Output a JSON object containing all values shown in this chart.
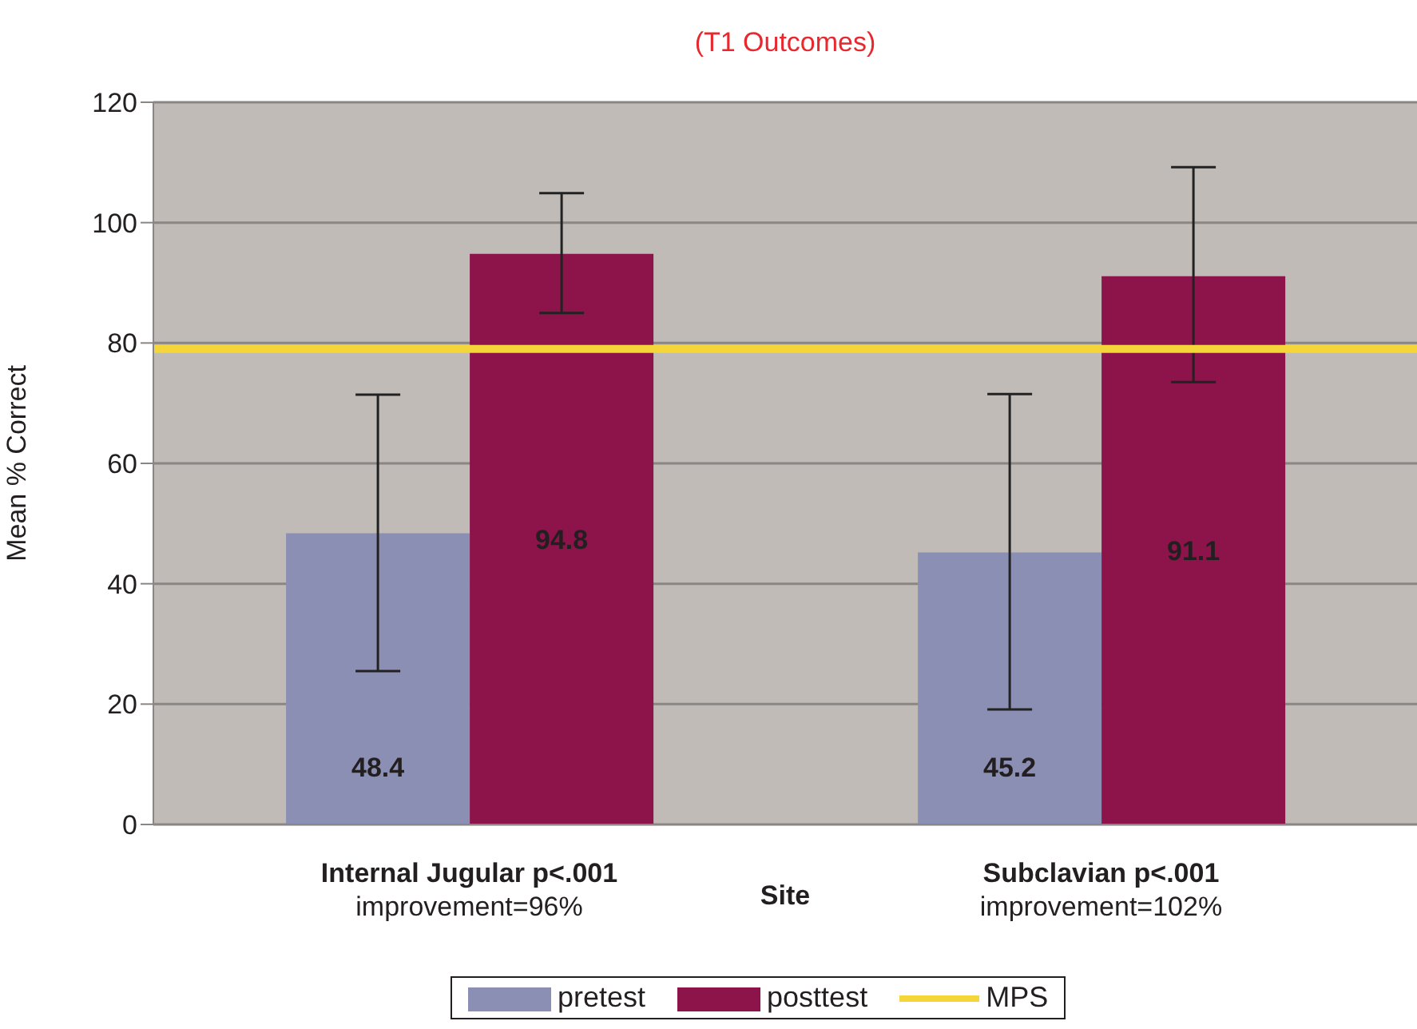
{
  "chart_data": {
    "type": "bar",
    "title": "(T1 Outcomes)",
    "xlabel": "Site",
    "ylabel": "Mean % Correct",
    "categories": [
      "Internal Jugular p<.001\nimprovement=96%",
      "Subclavian p<.001\nimprovement=102%"
    ],
    "series": [
      {
        "name": "pretest",
        "color": "#8b8fb3",
        "values": [
          48.4,
          45.2
        ],
        "errors": [
          [
            25.5,
            71.4
          ],
          [
            19.1,
            71.5
          ]
        ]
      },
      {
        "name": "posttest",
        "color": "#8d134b",
        "values": [
          94.8,
          91.1
        ],
        "errors": [
          [
            85,
            104.9
          ],
          [
            73.5,
            109.2
          ]
        ]
      }
    ],
    "ref_lines": [
      {
        "axis": "y",
        "value": 79,
        "label": "MPS",
        "color": "#f5d63a"
      }
    ],
    "ylim": [
      0,
      120
    ],
    "yticks": [
      0,
      20,
      40,
      60,
      80,
      100,
      120
    ],
    "grid": "y",
    "legend": "bottom",
    "data_labels": true
  }
}
